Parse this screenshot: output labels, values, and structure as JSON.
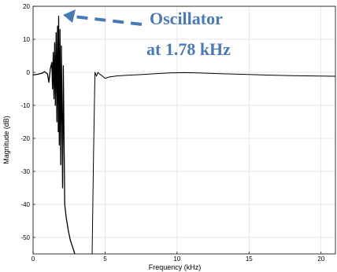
{
  "chart_data": {
    "type": "line",
    "xlabel": "Frequency (kHz)",
    "ylabel": "Magnitude (dB)",
    "xlim": [
      0,
      21
    ],
    "ylim": [
      -55,
      20
    ],
    "grid": true,
    "xticks": [
      "0",
      "5",
      "10",
      "15",
      "20"
    ],
    "yticks": [
      "20",
      "10",
      "0",
      "-10",
      "-20",
      "-30",
      "-40",
      "-50"
    ],
    "annotation": {
      "lines": [
        "Oscillator",
        "at 1.78 kHz"
      ],
      "color": "#4a7ab5",
      "points_to": {
        "x": 1.78,
        "y": 17
      }
    },
    "series": [
      {
        "points": [
          [
            0,
            -0.8
          ],
          [
            0.3,
            -0.6
          ],
          [
            0.6,
            -0.3
          ],
          [
            0.8,
            0.2
          ],
          [
            1.0,
            -0.5
          ],
          [
            1.1,
            -3
          ],
          [
            1.2,
            1
          ],
          [
            1.3,
            3
          ],
          [
            1.35,
            -5
          ],
          [
            1.4,
            6
          ],
          [
            1.45,
            -8
          ],
          [
            1.5,
            9
          ],
          [
            1.55,
            -10
          ],
          [
            1.6,
            12
          ],
          [
            1.65,
            -15
          ],
          [
            1.7,
            14
          ],
          [
            1.75,
            -18
          ],
          [
            1.78,
            17
          ],
          [
            1.82,
            -22
          ],
          [
            1.87,
            13
          ],
          [
            1.92,
            -28
          ],
          [
            1.97,
            8
          ],
          [
            2.05,
            -35
          ],
          [
            2.1,
            2
          ],
          [
            2.2,
            -40
          ],
          [
            2.3,
            -44
          ],
          [
            2.45,
            -48
          ],
          [
            2.6,
            -51
          ],
          [
            2.75,
            -53
          ],
          [
            2.9,
            -55
          ]
        ]
      },
      {
        "points": [
          [
            4.1,
            -55
          ],
          [
            4.2,
            -25
          ],
          [
            4.3,
            0
          ],
          [
            4.4,
            -1.2
          ],
          [
            4.5,
            0
          ],
          [
            4.6,
            -0.5
          ],
          [
            4.75,
            -0.9
          ],
          [
            5,
            -1.8
          ],
          [
            5.3,
            -1.4
          ],
          [
            5.8,
            -1.1
          ],
          [
            6.5,
            -0.9
          ],
          [
            7.5,
            -0.7
          ],
          [
            8.5,
            -0.4
          ],
          [
            9.5,
            -0.2
          ],
          [
            10.5,
            -0.1
          ],
          [
            11.5,
            -0.2
          ],
          [
            13,
            -0.4
          ],
          [
            14.5,
            -0.6
          ],
          [
            16,
            -0.8
          ],
          [
            18,
            -1
          ],
          [
            19.5,
            -1.1
          ],
          [
            21,
            -1.2
          ]
        ]
      }
    ]
  }
}
